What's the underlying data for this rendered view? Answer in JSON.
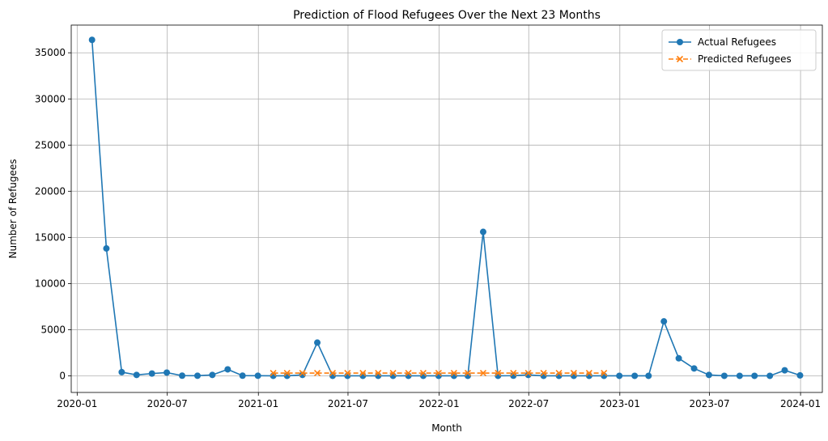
{
  "chart_data": {
    "type": "line",
    "title": "Prediction of Flood Refugees Over the Next 23 Months",
    "xlabel": "Month",
    "ylabel": "Number of Refugees",
    "ylim": [
      -1800,
      38000
    ],
    "xlim": [
      "2019-12-20",
      "2024-02-14"
    ],
    "grid": true,
    "legend_position": "top-right",
    "x_ticks": [
      {
        "date": "2020-01-01",
        "label": "2020-01"
      },
      {
        "date": "2020-07-01",
        "label": "2020-07"
      },
      {
        "date": "2021-01-01",
        "label": "2021-01"
      },
      {
        "date": "2021-07-01",
        "label": "2021-07"
      },
      {
        "date": "2022-01-01",
        "label": "2022-01"
      },
      {
        "date": "2022-07-01",
        "label": "2022-07"
      },
      {
        "date": "2023-01-01",
        "label": "2023-01"
      },
      {
        "date": "2023-07-01",
        "label": "2023-07"
      },
      {
        "date": "2024-01-01",
        "label": "2024-01"
      }
    ],
    "y_ticks": [
      0,
      5000,
      10000,
      15000,
      20000,
      25000,
      30000,
      35000
    ],
    "series": [
      {
        "name": "Actual Refugees",
        "color": "#1f77b4",
        "marker": "circle",
        "linestyle": "solid",
        "x": [
          "2020-01-31",
          "2020-02-29",
          "2020-03-31",
          "2020-04-30",
          "2020-05-31",
          "2020-06-30",
          "2020-07-31",
          "2020-08-31",
          "2020-09-30",
          "2020-10-31",
          "2020-11-30",
          "2020-12-31",
          "2021-01-31",
          "2021-02-28",
          "2021-03-31",
          "2021-04-30",
          "2021-05-31",
          "2021-06-30",
          "2021-07-31",
          "2021-08-31",
          "2021-09-30",
          "2021-10-31",
          "2021-11-30",
          "2021-12-31",
          "2022-01-31",
          "2022-02-28",
          "2022-03-31",
          "2022-04-30",
          "2022-05-31",
          "2022-06-30",
          "2022-07-31",
          "2022-08-31",
          "2022-09-30",
          "2022-10-31",
          "2022-11-30",
          "2022-12-31",
          "2023-01-31",
          "2023-02-28",
          "2023-03-31",
          "2023-04-30",
          "2023-05-31",
          "2023-06-30",
          "2023-07-31",
          "2023-08-31",
          "2023-09-30",
          "2023-10-31",
          "2023-11-30",
          "2023-12-31"
        ],
        "values": [
          36400,
          13800,
          400,
          100,
          250,
          350,
          20,
          10,
          100,
          700,
          20,
          10,
          0,
          0,
          100,
          3600,
          0,
          0,
          0,
          0,
          0,
          0,
          0,
          0,
          0,
          0,
          15600,
          0,
          20,
          100,
          0,
          0,
          0,
          0,
          0,
          0,
          0,
          0,
          5900,
          1900,
          800,
          100,
          0,
          0,
          0,
          0,
          600,
          50
        ]
      },
      {
        "name": "Predicted Refugees",
        "color": "#ff7f0e",
        "marker": "x",
        "linestyle": "dashed",
        "x": [
          "2021-01-31",
          "2021-02-28",
          "2021-03-31",
          "2021-04-30",
          "2021-05-31",
          "2021-06-30",
          "2021-07-31",
          "2021-08-31",
          "2021-09-30",
          "2021-10-31",
          "2021-11-30",
          "2021-12-31",
          "2022-01-31",
          "2022-02-28",
          "2022-03-31",
          "2022-04-30",
          "2022-05-31",
          "2022-06-30",
          "2022-07-31",
          "2022-08-31",
          "2022-09-30",
          "2022-10-31",
          "2022-11-30"
        ],
        "values": [
          300,
          300,
          300,
          300,
          300,
          300,
          300,
          300,
          300,
          300,
          300,
          300,
          300,
          300,
          300,
          300,
          300,
          300,
          300,
          300,
          300,
          300,
          300
        ]
      }
    ]
  }
}
